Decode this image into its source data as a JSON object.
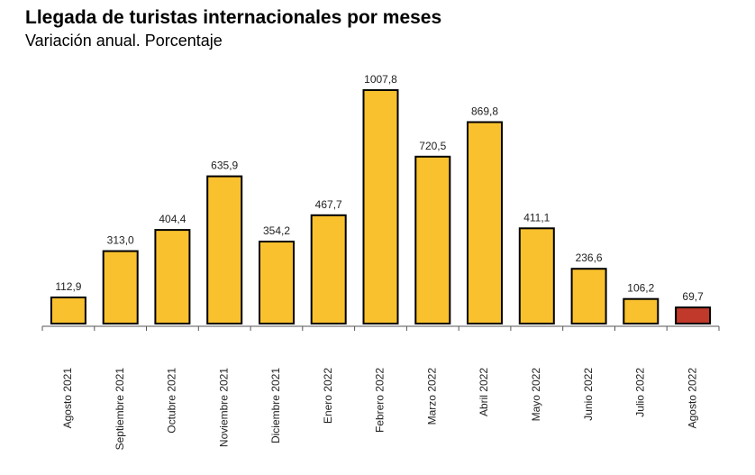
{
  "title": "Llegada de turistas internacionales por meses",
  "subtitle": "Variación anual. Porcentaje",
  "colors": {
    "bar": "#F9C12E",
    "highlight": "#C0392B",
    "stroke": "#000000",
    "axis": "#555555"
  },
  "chart_data": {
    "type": "bar",
    "categories": [
      "Agosto 2021",
      "Septiembre 2021",
      "Octubre 2021",
      "Noviembre 2021",
      "Diciembre 2021",
      "Enero 2022",
      "Febrero 2022",
      "Marzo 2022",
      "Abril 2022",
      "Mayo 2022",
      "Junio 2022",
      "Julio 2022",
      "Agosto 2022"
    ],
    "values": [
      112.9,
      313.0,
      404.4,
      635.9,
      354.2,
      467.7,
      1007.8,
      720.5,
      869.8,
      411.1,
      236.6,
      106.2,
      69.7
    ],
    "value_labels": [
      "112,9",
      "313,0",
      "404,4",
      "635,9",
      "354,2",
      "467,7",
      "1007,8",
      "720,5",
      "869,8",
      "411,1",
      "236,6",
      "106,2",
      "69,7"
    ],
    "highlight_index": 12,
    "title": "Llegada de turistas internacionales por meses",
    "subtitle": "Variación anual. Porcentaje",
    "xlabel": "",
    "ylabel": "",
    "ylim": [
      0,
      1007.8
    ],
    "grid": false,
    "legend": "none"
  }
}
